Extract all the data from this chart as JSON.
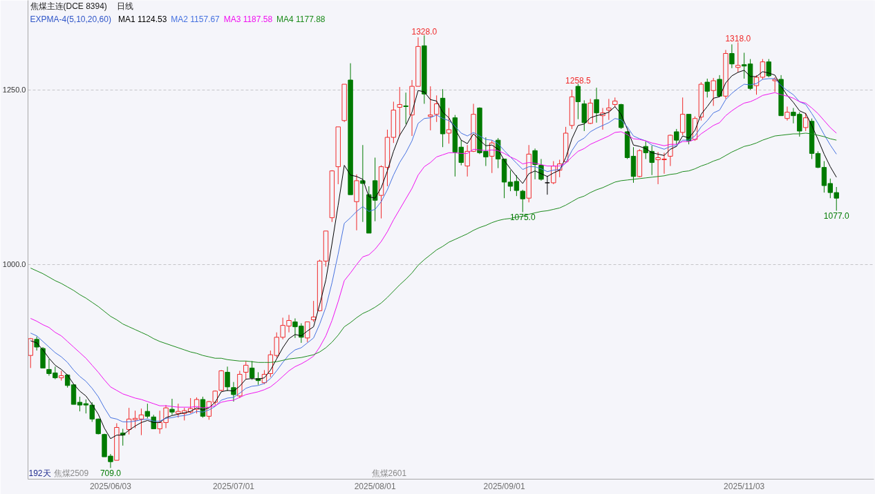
{
  "chart_data": {
    "type": "candlestick",
    "title": "焦煤主连(DCE 8394)",
    "subtitle": "日线",
    "legend_title": "EXPMA-4(5,10,20,60)",
    "legend": "top left",
    "grid": "y",
    "ylim": [
      693,
      1378
    ],
    "yticks": [
      {
        "value": 1000,
        "label": "1000.0"
      },
      {
        "value": 1250,
        "label": "1250.0"
      }
    ],
    "categories": [
      null,
      null,
      null,
      null,
      null,
      null,
      null,
      null,
      null,
      null,
      null,
      null,
      null,
      "2025/06/03",
      null,
      null,
      null,
      null,
      null,
      null,
      null,
      null,
      null,
      null,
      null,
      null,
      null,
      null,
      null,
      null,
      null,
      null,
      null,
      "2025/07/01",
      null,
      null,
      null,
      null,
      null,
      null,
      null,
      null,
      null,
      null,
      null,
      null,
      null,
      null,
      null,
      null,
      null,
      null,
      null,
      null,
      null,
      null,
      "2025/08/01",
      null,
      null,
      null,
      null,
      null,
      null,
      null,
      null,
      null,
      null,
      null,
      null,
      null,
      null,
      null,
      null,
      null,
      null,
      null,
      null,
      "2025/09/01",
      null,
      null,
      null,
      null,
      null,
      null,
      null,
      null,
      null,
      null,
      null,
      null,
      null,
      null,
      null,
      null,
      null,
      null,
      null,
      null,
      null,
      null,
      null,
      null,
      null,
      null,
      null,
      null,
      null,
      null,
      null,
      null,
      null,
      null,
      null,
      null,
      null,
      null,
      "2025/11/03",
      null,
      null,
      null,
      null,
      null,
      null,
      null,
      null,
      null,
      null,
      null,
      null,
      null,
      null,
      null
    ],
    "ohlc": [
      [
        870,
        895,
        852,
        894
      ],
      [
        893,
        897,
        877,
        882
      ],
      [
        880,
        882,
        852,
        852
      ],
      [
        850,
        865,
        841,
        844
      ],
      [
        845,
        854,
        836,
        838
      ],
      [
        838,
        848,
        834,
        841
      ],
      [
        842,
        843,
        824,
        827
      ],
      [
        828,
        829,
        800,
        800
      ],
      [
        803,
        811,
        790,
        799
      ],
      [
        801,
        807,
        787,
        799
      ],
      [
        799,
        803,
        775,
        779
      ],
      [
        779,
        780,
        757,
        758
      ],
      [
        757,
        758,
        725,
        725
      ],
      [
        726,
        729,
        709,
        718
      ],
      [
        720,
        773,
        720,
        767
      ],
      [
        759,
        765,
        741,
        756
      ],
      [
        764,
        795,
        757,
        779
      ],
      [
        778,
        791,
        766,
        780
      ],
      [
        779,
        794,
        756,
        785
      ],
      [
        790,
        801,
        780,
        783
      ],
      [
        782,
        785,
        765,
        765
      ],
      [
        765,
        791,
        758,
        774
      ],
      [
        774,
        799,
        766,
        795
      ],
      [
        793,
        808,
        785,
        789
      ],
      [
        787,
        801,
        781,
        790
      ],
      [
        787,
        795,
        777,
        791
      ],
      [
        789,
        809,
        787,
        794
      ],
      [
        793,
        810,
        787,
        807
      ],
      [
        807,
        811,
        781,
        783
      ],
      [
        783,
        805,
        778,
        804
      ],
      [
        803,
        820,
        799,
        819
      ],
      [
        820,
        849,
        819,
        848
      ],
      [
        846,
        854,
        819,
        825
      ],
      [
        824,
        832,
        804,
        814
      ],
      [
        812,
        848,
        809,
        843
      ],
      [
        846,
        862,
        836,
        856
      ],
      [
        852,
        862,
        835,
        838
      ],
      [
        837,
        846,
        828,
        834
      ],
      [
        831,
        849,
        829,
        843
      ],
      [
        844,
        877,
        839,
        871
      ],
      [
        870,
        903,
        867,
        896
      ],
      [
        896,
        924,
        893,
        913
      ],
      [
        912,
        928,
        903,
        920
      ],
      [
        918,
        923,
        895,
        911
      ],
      [
        912,
        916,
        888,
        896
      ],
      [
        895,
        918,
        889,
        918
      ],
      [
        921,
        948,
        918,
        925
      ],
      [
        934,
        1007,
        933,
        1005
      ],
      [
        1005,
        1048,
        997,
        1048
      ],
      [
        1067,
        1135,
        1061,
        1134
      ],
      [
        1140,
        1197,
        1115,
        1197
      ],
      [
        1206,
        1258,
        1204,
        1258
      ],
      [
        1264,
        1288,
        1100,
        1100
      ],
      [
        1090,
        1129,
        1049,
        1120
      ],
      [
        1120,
        1171,
        1061,
        1116
      ],
      [
        1100,
        1112,
        1045,
        1045
      ],
      [
        1120,
        1153,
        1062,
        1092
      ],
      [
        1099,
        1142,
        1066,
        1140
      ],
      [
        1139,
        1193,
        1112,
        1182
      ],
      [
        1182,
        1233,
        1174,
        1221
      ],
      [
        1225,
        1254,
        1184,
        1229
      ],
      [
        1227,
        1246,
        1201,
        1226
      ],
      [
        1214,
        1264,
        1184,
        1255
      ],
      [
        1255,
        1325,
        1255,
        1312
      ],
      [
        1313,
        1328,
        1230,
        1244
      ],
      [
        1212,
        1255,
        1192,
        1214
      ],
      [
        1215,
        1242,
        1204,
        1230
      ],
      [
        1238,
        1251,
        1168,
        1187
      ],
      [
        1188,
        1224,
        1173,
        1193
      ],
      [
        1210,
        1214,
        1126,
        1161
      ],
      [
        1168,
        1178,
        1142,
        1146
      ],
      [
        1141,
        1171,
        1126,
        1162
      ],
      [
        1162,
        1230,
        1161,
        1215
      ],
      [
        1224,
        1225,
        1158,
        1160
      ],
      [
        1162,
        1182,
        1141,
        1154
      ],
      [
        1155,
        1178,
        1131,
        1174
      ],
      [
        1178,
        1181,
        1138,
        1151
      ],
      [
        1151,
        1151,
        1095,
        1118
      ],
      [
        1118,
        1135,
        1105,
        1112
      ],
      [
        1119,
        1128,
        1098,
        1106
      ],
      [
        1105,
        1107,
        1075,
        1094
      ],
      [
        1095,
        1171,
        1089,
        1158
      ],
      [
        1163,
        1166,
        1122,
        1143
      ],
      [
        1142,
        1151,
        1120,
        1122
      ],
      [
        1117,
        1127,
        1100,
        1117
      ],
      [
        1117,
        1148,
        1115,
        1141
      ],
      [
        1135,
        1150,
        1125,
        1144
      ],
      [
        1147,
        1197,
        1146,
        1188
      ],
      [
        1199,
        1250,
        1194,
        1240
      ],
      [
        1255,
        1258.5,
        1208,
        1233
      ],
      [
        1230,
        1235,
        1191,
        1203
      ],
      [
        1202,
        1237,
        1201,
        1231
      ],
      [
        1236,
        1253,
        1203,
        1217
      ],
      [
        1213,
        1224,
        1193,
        1217
      ],
      [
        1221,
        1237,
        1207,
        1224
      ],
      [
        1229,
        1239,
        1225,
        1234
      ],
      [
        1229,
        1230,
        1194,
        1196
      ],
      [
        1190,
        1191,
        1151,
        1153
      ],
      [
        1155,
        1168,
        1117,
        1126
      ],
      [
        1126,
        1165,
        1125,
        1163
      ],
      [
        1169,
        1176,
        1151,
        1160
      ],
      [
        1162,
        1170,
        1128,
        1146
      ],
      [
        1150,
        1161,
        1115,
        1153
      ],
      [
        1150,
        1160,
        1130,
        1151
      ],
      [
        1155,
        1186,
        1141,
        1185
      ],
      [
        1190,
        1194,
        1171,
        1178
      ],
      [
        1189,
        1239,
        1185,
        1215
      ],
      [
        1215,
        1215,
        1172,
        1177
      ],
      [
        1179,
        1212,
        1177,
        1209
      ],
      [
        1211,
        1261,
        1206,
        1258
      ],
      [
        1261,
        1266,
        1239,
        1248
      ],
      [
        1249,
        1267,
        1227,
        1263
      ],
      [
        1265,
        1271,
        1240,
        1241
      ],
      [
        1241,
        1307,
        1237,
        1302
      ],
      [
        1302,
        1315,
        1281,
        1287
      ],
      [
        1282,
        1318,
        1275,
        1285
      ],
      [
        1286,
        1303,
        1266,
        1284
      ],
      [
        1287,
        1294,
        1250,
        1252
      ],
      [
        1256,
        1271,
        1243,
        1268
      ],
      [
        1268,
        1294,
        1265,
        1290
      ],
      [
        1290,
        1294,
        1268,
        1270
      ],
      [
        1263,
        1268,
        1247,
        1265
      ],
      [
        1265,
        1271,
        1213,
        1213
      ],
      [
        1209,
        1226,
        1206,
        1218
      ],
      [
        1218,
        1224,
        1202,
        1213
      ],
      [
        1215,
        1218,
        1183,
        1191
      ],
      [
        1196,
        1217,
        1191,
        1210
      ],
      [
        1205,
        1209,
        1151,
        1159
      ],
      [
        1159,
        1162,
        1138,
        1139
      ],
      [
        1139,
        1148,
        1103,
        1113
      ],
      [
        1116,
        1123,
        1095,
        1103
      ],
      [
        1103,
        1111,
        1077,
        1095
      ]
    ],
    "colors": [
      "#f02828",
      "#007a00",
      "#007a00",
      "#007a00",
      "#007a00",
      "#f02828",
      "#007a00",
      "#007a00",
      "#007a00",
      "#007a00",
      "#007a00",
      "#007a00",
      "#007a00",
      "#007a00",
      "#f02828",
      "#007a00",
      "#f02828",
      "#f02828",
      "#f02828",
      "#007a00",
      "#007a00",
      "#f02828",
      "#f02828",
      "#007a00",
      "#f02828",
      "#f02828",
      "#f02828",
      "#f02828",
      "#007a00",
      "#f02828",
      "#f02828",
      "#f02828",
      "#007a00",
      "#007a00",
      "#f02828",
      "#f02828",
      "#007a00",
      "#007a00",
      "#f02828",
      "#f02828",
      "#f02828",
      "#f02828",
      "#f02828",
      "#007a00",
      "#007a00",
      "#f02828",
      "#f02828",
      "#f02828",
      "#f02828",
      "#f02828",
      "#f02828",
      "#f02828",
      "#007a00",
      "#f02828",
      "#007a00",
      "#007a00",
      "#007a00",
      "#f02828",
      "#f02828",
      "#f02828",
      "#f02828",
      "#007a00",
      "#f02828",
      "#f02828",
      "#007a00",
      "#f02828",
      "#f02828",
      "#007a00",
      "#f02828",
      "#007a00",
      "#007a00",
      "#f02828",
      "#f02828",
      "#007a00",
      "#007a00",
      "#f02828",
      "#007a00",
      "#007a00",
      "#007a00",
      "#007a00",
      "#007a00",
      "#f02828",
      "#007a00",
      "#007a00",
      "#000000",
      "#f02828",
      "#f02828",
      "#f02828",
      "#f02828",
      "#007a00",
      "#007a00",
      "#f02828",
      "#007a00",
      "#f02828",
      "#f02828",
      "#f02828",
      "#007a00",
      "#007a00",
      "#007a00",
      "#f02828",
      "#007a00",
      "#007a00",
      "#f02828",
      "#f02828",
      "#f02828",
      "#007a00",
      "#f02828",
      "#007a00",
      "#f02828",
      "#f02828",
      "#007a00",
      "#f02828",
      "#007a00",
      "#f02828",
      "#007a00",
      "#f02828",
      "#007a00",
      "#007a00",
      "#f02828",
      "#f02828",
      "#007a00",
      "#f02828",
      "#007a00",
      "#f02828",
      "#007a00",
      "#007a00",
      "#f02828",
      "#007a00",
      "#007a00",
      "#007a00",
      "#007a00",
      "#007a00"
    ],
    "series": [
      {
        "name": "MA1 1124.53",
        "type": "line",
        "color": "#000000",
        "values": [
          891,
          888,
          878,
          866,
          856,
          850,
          842,
          829,
          819,
          812,
          800,
          786,
          766,
          751,
          756,
          756,
          763,
          769,
          774,
          777,
          774,
          774,
          781,
          784,
          786,
          788,
          790,
          795,
          792,
          795,
          803,
          818,
          820,
          819,
          826,
          836,
          837,
          836,
          838,
          849,
          865,
          881,
          894,
          900,
          898,
          905,
          911,
          943,
          978,
          1030,
          1085,
          1142,
          1128,
          1126,
          1122,
          1097,
          1095,
          1110,
          1134,
          1162,
          1185,
          1199,
          1218,
          1249,
          1247,
          1236,
          1234,
          1218,
          1210,
          1194,
          1178,
          1173,
          1187,
          1178,
          1170,
          1171,
          1165,
          1149,
          1137,
          1126,
          1116,
          1130,
          1134,
          1130,
          1126,
          1131,
          1135,
          1153,
          1180,
          1199,
          1201,
          1210,
          1213,
          1215,
          1218,
          1226,
          1215,
          1194,
          1171,
          1169,
          1166,
          1160,
          1158,
          1156,
          1165,
          1169,
          1184,
          1181,
          1192,
          1215,
          1226,
          1238,
          1240,
          1260,
          1270,
          1275,
          1278,
          1269,
          1269,
          1276,
          1274,
          1271,
          1255,
          1242,
          1232,
          1220,
          1216,
          1199,
          1179,
          1158,
          1140,
          1125
        ]
      },
      {
        "name": "MA2 1157.67",
        "type": "line",
        "color": "#4672e0",
        "values": [
          902,
          898,
          890,
          882,
          874,
          868,
          860,
          849,
          840,
          833,
          823,
          811,
          795,
          781,
          779,
          775,
          775,
          776,
          778,
          779,
          776,
          776,
          780,
          781,
          783,
          784,
          786,
          790,
          789,
          792,
          797,
          806,
          809,
          810,
          816,
          823,
          826,
          827,
          830,
          837,
          848,
          860,
          871,
          878,
          881,
          888,
          895,
          915,
          939,
          974,
          1015,
          1059,
          1067,
          1076,
          1083,
          1076,
          1079,
          1090,
          1107,
          1128,
          1146,
          1160,
          1177,
          1202,
          1209,
          1210,
          1214,
          1209,
          1206,
          1198,
          1188,
          1184,
          1189,
          1184,
          1179,
          1178,
          1173,
          1163,
          1154,
          1145,
          1136,
          1140,
          1140,
          1137,
          1133,
          1135,
          1136,
          1146,
          1163,
          1176,
          1181,
          1190,
          1195,
          1199,
          1203,
          1209,
          1207,
          1197,
          1184,
          1180,
          1177,
          1171,
          1168,
          1165,
          1169,
          1170,
          1178,
          1178,
          1184,
          1197,
          1206,
          1217,
          1221,
          1236,
          1245,
          1252,
          1258,
          1257,
          1259,
          1265,
          1266,
          1266,
          1256,
          1249,
          1243,
          1233,
          1229,
          1216,
          1202,
          1186,
          1171,
          1158
        ]
      },
      {
        "name": "MA3 1187.58",
        "type": "line",
        "color": "#f010f0",
        "values": [
          923,
          919,
          914,
          910,
          903,
          898,
          890,
          882,
          874,
          866,
          856,
          846,
          835,
          825,
          820,
          815,
          812,
          809,
          807,
          804,
          801,
          798,
          798,
          797,
          796,
          796,
          796,
          797,
          795,
          796,
          798,
          803,
          805,
          806,
          810,
          814,
          816,
          818,
          821,
          825,
          832,
          840,
          848,
          854,
          858,
          863,
          869,
          882,
          898,
          920,
          947,
          977,
          988,
          1000,
          1011,
          1014,
          1022,
          1033,
          1047,
          1064,
          1079,
          1094,
          1109,
          1128,
          1140,
          1146,
          1154,
          1157,
          1160,
          1160,
          1159,
          1159,
          1165,
          1164,
          1163,
          1164,
          1163,
          1159,
          1154,
          1150,
          1144,
          1146,
          1145,
          1143,
          1141,
          1141,
          1141,
          1145,
          1154,
          1162,
          1166,
          1172,
          1176,
          1180,
          1184,
          1189,
          1190,
          1186,
          1180,
          1179,
          1177,
          1174,
          1172,
          1170,
          1172,
          1172,
          1176,
          1176,
          1179,
          1187,
          1193,
          1199,
          1203,
          1213,
          1220,
          1226,
          1231,
          1233,
          1237,
          1242,
          1244,
          1246,
          1243,
          1241,
          1238,
          1233,
          1231,
          1224,
          1216,
          1206,
          1196,
          1188
        ]
      },
      {
        "name": "MA4 1177.88",
        "type": "line",
        "color": "#1a8a1a",
        "values": [
          995,
          991,
          987,
          982,
          977,
          973,
          968,
          963,
          957,
          952,
          946,
          940,
          933,
          926,
          921,
          915,
          911,
          907,
          903,
          899,
          894,
          890,
          887,
          884,
          881,
          878,
          875,
          873,
          870,
          868,
          866,
          866,
          864,
          863,
          862,
          862,
          861,
          860,
          860,
          860,
          861,
          863,
          865,
          866,
          867,
          869,
          871,
          875,
          881,
          889,
          899,
          911,
          917,
          924,
          930,
          934,
          939,
          945,
          953,
          962,
          971,
          979,
          988,
          999,
          1007,
          1014,
          1021,
          1026,
          1032,
          1036,
          1040,
          1044,
          1049,
          1053,
          1056,
          1060,
          1063,
          1065,
          1066,
          1068,
          1069,
          1072,
          1074,
          1076,
          1077,
          1079,
          1081,
          1085,
          1090,
          1095,
          1098,
          1103,
          1107,
          1110,
          1114,
          1118,
          1120,
          1121,
          1122,
          1123,
          1124,
          1125,
          1126,
          1127,
          1129,
          1130,
          1133,
          1134,
          1137,
          1141,
          1144,
          1148,
          1151,
          1156,
          1161,
          1165,
          1169,
          1171,
          1174,
          1178,
          1181,
          1184,
          1185,
          1186,
          1187,
          1187,
          1188,
          1187,
          1185,
          1183,
          1180,
          1178
        ]
      }
    ],
    "annotations": [
      "192天",
      "焦煤2509",
      "焦煤2601",
      {
        "text": "1328.0",
        "y": 1328
      },
      {
        "text": "1258.5",
        "y": 1258.5
      },
      {
        "text": "1318.0",
        "y": 1318
      },
      {
        "text": "709.0",
        "x": "2025/06/03",
        "y": 709
      },
      {
        "text": "1075.0",
        "y": 1075
      },
      {
        "text": "1077.0",
        "y": 1077
      }
    ]
  }
}
